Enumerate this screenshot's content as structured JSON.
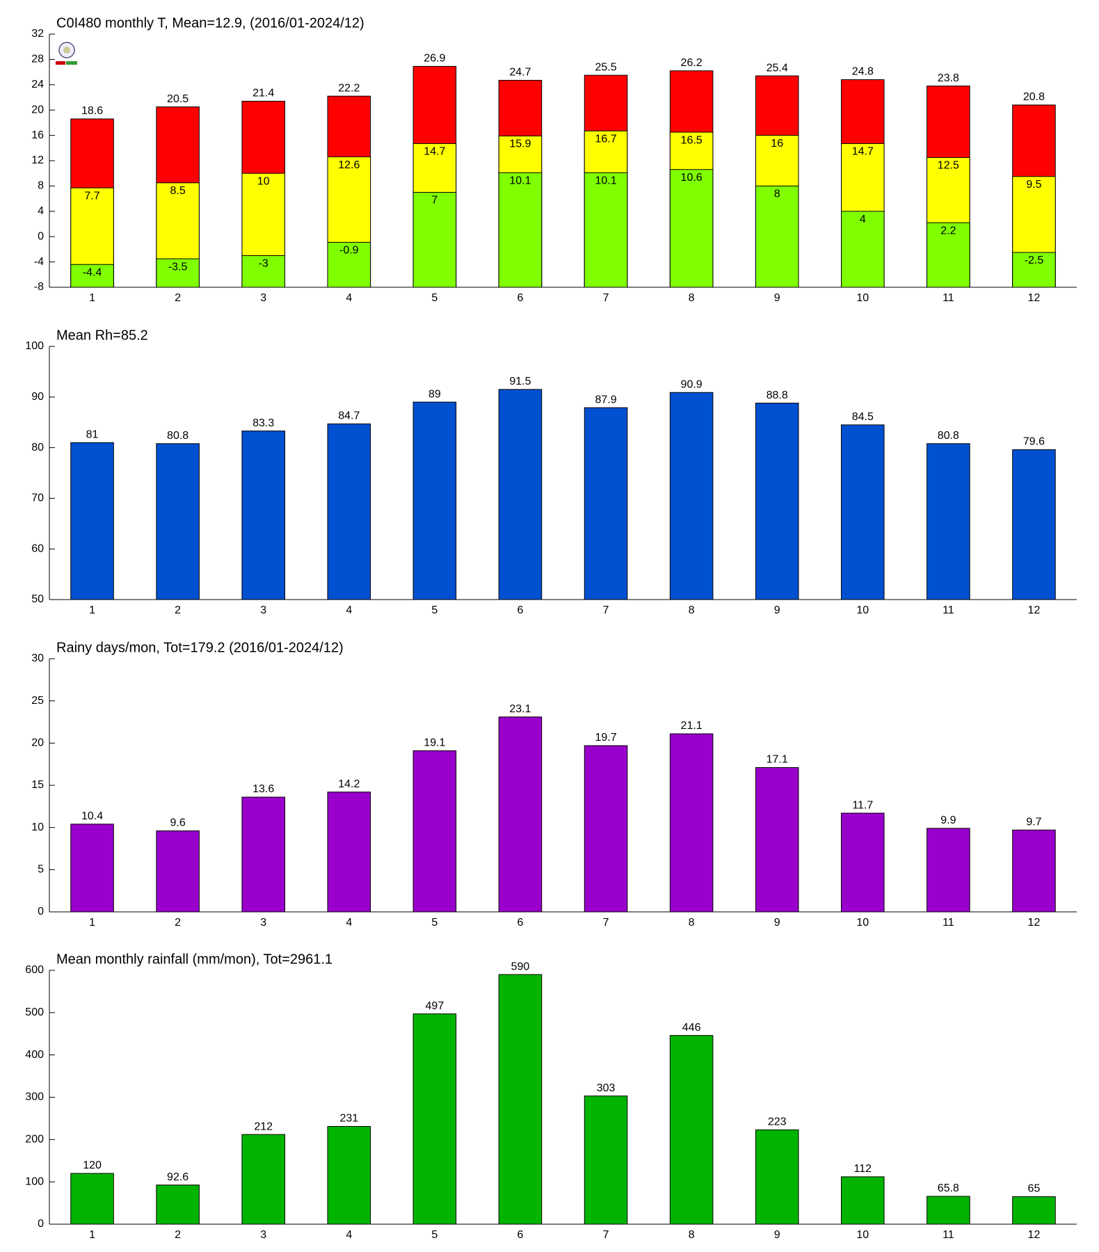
{
  "chart_data": [
    {
      "type": "bar",
      "title": "C0I480 monthly T, Mean=12.9, (2016/01-2024/12)",
      "categories": [
        "1",
        "2",
        "3",
        "4",
        "5",
        "6",
        "7",
        "8",
        "9",
        "10",
        "11",
        "12"
      ],
      "series": [
        {
          "color": "#ff0000",
          "values": [
            18.6,
            20.5,
            21.4,
            22.2,
            26.9,
            24.7,
            25.5,
            26.2,
            25.4,
            24.8,
            23.8,
            20.8
          ]
        },
        {
          "color": "#ffff00",
          "values": [
            7.7,
            8.5,
            10,
            12.6,
            14.7,
            15.9,
            16.7,
            16.5,
            16,
            14.7,
            12.5,
            9.5
          ]
        },
        {
          "color": "#80ff00",
          "values": [
            -4.4,
            -3.5,
            -3,
            -0.9,
            7,
            10.1,
            10.1,
            10.6,
            8,
            4,
            2.2,
            -2.5
          ]
        }
      ],
      "ylim": [
        -8,
        32
      ],
      "yticks": [
        -8,
        -4,
        0,
        4,
        8,
        12,
        16,
        20,
        24,
        28,
        32
      ]
    },
    {
      "type": "bar",
      "title": "Mean Rh=85.2",
      "categories": [
        "1",
        "2",
        "3",
        "4",
        "5",
        "6",
        "7",
        "8",
        "9",
        "10",
        "11",
        "12"
      ],
      "values": [
        81,
        80.8,
        83.3,
        84.7,
        89,
        91.5,
        87.9,
        90.9,
        88.8,
        84.5,
        80.8,
        79.6
      ],
      "color": "#0050d0",
      "ylim": [
        50,
        100
      ],
      "yticks": [
        50,
        60,
        70,
        80,
        90,
        100
      ]
    },
    {
      "type": "bar",
      "title": "Rainy days/mon, Tot=179.2 (2016/01-2024/12)",
      "categories": [
        "1",
        "2",
        "3",
        "4",
        "5",
        "6",
        "7",
        "8",
        "9",
        "10",
        "11",
        "12"
      ],
      "values": [
        10.4,
        9.6,
        13.6,
        14.2,
        19.1,
        23.1,
        19.7,
        21.1,
        17.1,
        11.7,
        9.9,
        9.7
      ],
      "color": "#9900cc",
      "ylim": [
        0,
        30
      ],
      "yticks": [
        0,
        5,
        10,
        15,
        20,
        25,
        30
      ]
    },
    {
      "type": "bar",
      "title": "Mean monthly rainfall (mm/mon), Tot=2961.1",
      "categories": [
        "1",
        "2",
        "3",
        "4",
        "5",
        "6",
        "7",
        "8",
        "9",
        "10",
        "11",
        "12"
      ],
      "values": [
        120,
        92.6,
        212,
        231,
        497,
        590,
        303,
        446,
        223,
        112,
        65.8,
        65
      ],
      "color": "#00b400",
      "ylim": [
        0,
        600
      ],
      "yticks": [
        0,
        100,
        200,
        300,
        400,
        500,
        600
      ]
    }
  ]
}
